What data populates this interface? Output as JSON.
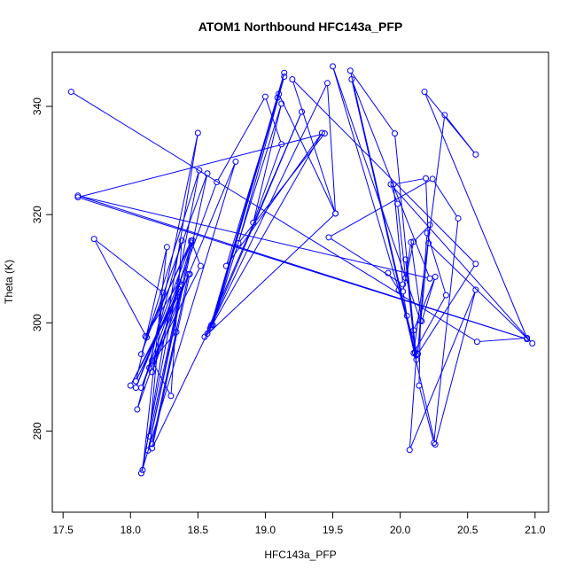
{
  "chart_data": {
    "type": "line",
    "title": "ATOM1 Northbound HFC143a_PFP",
    "xlabel": "HFC143a_PFP",
    "ylabel": "Theta (K)",
    "xlim": [
      17.42,
      21.1
    ],
    "ylim": [
      265,
      350
    ],
    "xticks": [
      17.5,
      18.0,
      18.5,
      19.0,
      19.5,
      20.0,
      20.5,
      21.0
    ],
    "xtick_labels": [
      "17.5",
      "18.0",
      "18.5",
      "19.0",
      "19.5",
      "20.0",
      "20.5",
      "21.0"
    ],
    "yticks": [
      280,
      300,
      320,
      340
    ],
    "ytick_labels": [
      "280",
      "300",
      "320",
      "340"
    ],
    "grid": false,
    "color": "#0000ff",
    "series": [
      {
        "points": [
          [
            17.56,
            342.7
          ],
          [
            20.57,
            296.5
          ],
          [
            20.94,
            297.2
          ],
          [
            20.18,
            342.7
          ],
          [
            20.56,
            331.1
          ],
          [
            20.33,
            338.4
          ],
          [
            20.1,
            294.4
          ],
          [
            20.34,
            305.1
          ],
          [
            20.2,
            316.6
          ],
          [
            20.13,
            294.3
          ],
          [
            20.22,
            318.1
          ],
          [
            20.1,
            315.0
          ],
          [
            20.02,
            305.8
          ],
          [
            20.05,
            301.3
          ],
          [
            20.12,
            293.2
          ],
          [
            19.96,
            335.0
          ],
          [
            19.63,
            346.6
          ],
          [
            20.11,
            294.5
          ],
          [
            20.04,
            311.7
          ],
          [
            20.1,
            298.6
          ],
          [
            20.26,
            308.5
          ],
          [
            20.16,
            300.3
          ],
          [
            20.08,
            314.9
          ],
          [
            20.04,
            308.3
          ],
          [
            19.98,
            322.0
          ],
          [
            19.93,
            325.6
          ],
          [
            20.98,
            296.2
          ],
          [
            20.21,
            314.7
          ],
          [
            20.19,
            326.7
          ],
          [
            19.95,
            325.6
          ],
          [
            20.02,
            307.1
          ],
          [
            19.47,
            315.8
          ],
          [
            20.24,
            326.6
          ],
          [
            20.43,
            319.3
          ],
          [
            20.25,
            277.8
          ],
          [
            20.14,
            288.4
          ],
          [
            20.15,
            300.4
          ],
          [
            19.5,
            347.4
          ],
          [
            20.13,
            294.2
          ],
          [
            20.56,
            310.9
          ],
          [
            19.2,
            345.0
          ],
          [
            19.52,
            320.2
          ],
          [
            19.1,
            342.3
          ],
          [
            18.6,
            299.2
          ],
          [
            19.09,
            341.6
          ],
          [
            18.59,
            299.0
          ],
          [
            19.14,
            346.2
          ],
          [
            18.61,
            299.6
          ],
          [
            19.12,
            340.5
          ],
          [
            18.91,
            318.5
          ],
          [
            19.12,
            333.0
          ],
          [
            19.0,
            341.8
          ],
          [
            18.64,
            326.0
          ],
          [
            18.08,
            288.0
          ],
          [
            18.78,
            329.8
          ],
          [
            18.08,
            272.2
          ],
          [
            18.51,
            328.2
          ],
          [
            18.08,
            294.2
          ],
          [
            18.57,
            327.6
          ],
          [
            18.13,
            276.4
          ],
          [
            18.45,
            314.8
          ],
          [
            18.04,
            288.0
          ],
          [
            18.36,
            307.5
          ],
          [
            18.11,
            297.5
          ],
          [
            18.46,
            315.2
          ],
          [
            18.16,
            290.9
          ],
          [
            18.43,
            309.0
          ],
          [
            18.16,
            277.6
          ],
          [
            18.34,
            298.3
          ],
          [
            18.16,
            293.0
          ],
          [
            18.3,
            286.5
          ],
          [
            18.38,
            315.2
          ],
          [
            18.05,
            284.0
          ],
          [
            18.36,
            306.2
          ],
          [
            18.04,
            289.2
          ],
          [
            18.27,
            314.0
          ],
          [
            18.09,
            272.8
          ],
          [
            18.5,
            335.1
          ],
          [
            18.14,
            291.7
          ],
          [
            18.52,
            310.5
          ],
          [
            18.45,
            315.2
          ],
          [
            18.12,
            297.3
          ],
          [
            17.73,
            315.5
          ],
          [
            18.24,
            305.6
          ],
          [
            18.14,
            279.0
          ],
          [
            18.38,
            307.0
          ],
          [
            18.0,
            288.4
          ],
          [
            18.44,
            309.0
          ],
          [
            18.16,
            276.8
          ],
          [
            18.6,
            299.6
          ],
          [
            19.27,
            339.0
          ],
          [
            18.55,
            297.4
          ],
          [
            19.52,
            320.2
          ],
          [
            19.46,
            344.3
          ],
          [
            18.57,
            298.0
          ],
          [
            19.42,
            335.1
          ],
          [
            18.71,
            310.5
          ],
          [
            19.14,
            345.5
          ],
          [
            18.8,
            314.7
          ],
          [
            19.44,
            335.0
          ],
          [
            17.61,
            323.2
          ],
          [
            20.94,
            297.0
          ],
          [
            17.61,
            323.5
          ],
          [
            20.22,
            308.2
          ],
          [
            19.64,
            345.0
          ],
          [
            20.26,
            277.5
          ],
          [
            20.56,
            306.1
          ],
          [
            20.07,
            276.5
          ],
          [
            20.12,
            294.0
          ],
          [
            19.99,
            306.1
          ],
          [
            19.91,
            309.2
          ]
        ]
      }
    ]
  }
}
